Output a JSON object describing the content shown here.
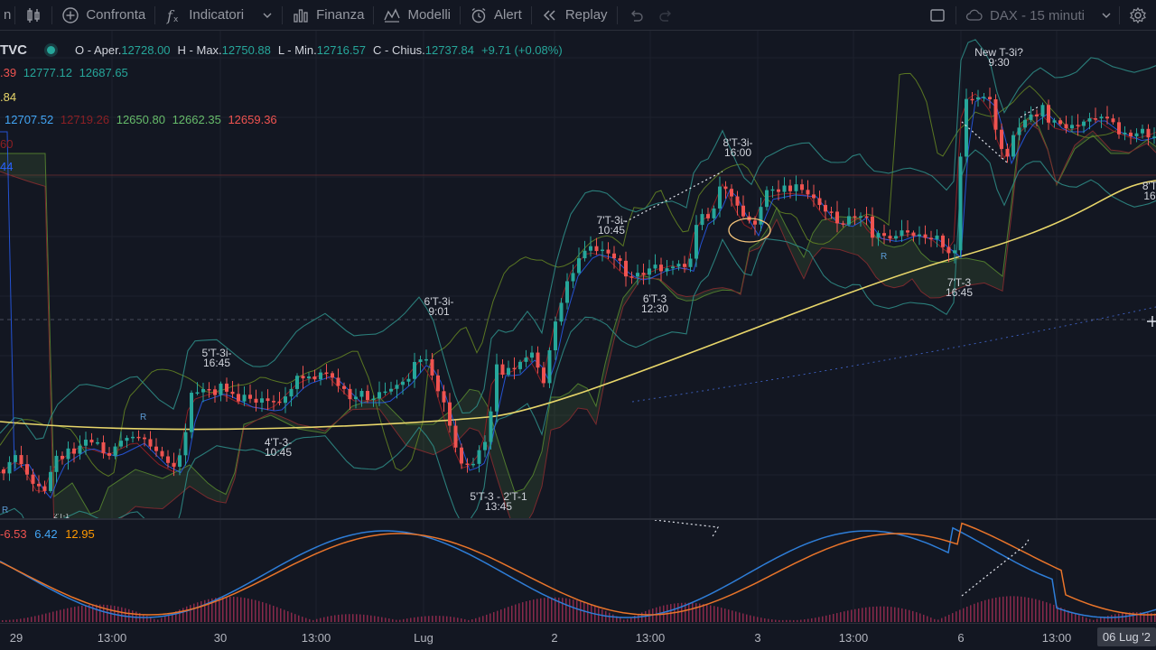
{
  "toolbar": {
    "compare_label": "Confronta",
    "indicators_label": "Indicatori",
    "finance_label": "Finanza",
    "templates_label": "Modelli",
    "alert_label": "Alert",
    "replay_label": "Replay",
    "symbol_interval": "DAX - 15 minuti",
    "left_partial": "n"
  },
  "legend": {
    "symbol": "TVC",
    "open_label": "O - Aper.",
    "open": "12728.00",
    "high_label": "H - Max.",
    "high": "12750.88",
    "low_label": "L - Min.",
    "low": "12716.57",
    "close_label": "C - Chius.",
    "close": "12737.84",
    "change": "+9.71 (+0.08%)",
    "bb_prefix": ".39",
    "bb_upper": "12777.12",
    "bb_lower": "12687.65",
    "ma_value": ".84",
    "ichimoku_v1": "12707.52",
    "ichimoku_v2": "12719.26",
    "ichimoku_v3": "12650.80",
    "ichimoku_v4": "12662.35",
    "ichimoku_v5": "12659.36",
    "row4_partial": "60",
    "row5_partial": "44",
    "macd_hist": "-6.53",
    "macd_line": "6.42",
    "macd_signal": "12.95"
  },
  "annotations": {
    "a1": "5'T-3i-\n16:45",
    "a2": "4'T-3-\n10:45",
    "a3": "6'T-3i-\n9:01",
    "a4": "5'T-3 - 2'T-1\n13:45",
    "a5": "7'T-3i-\n10:45",
    "a6": "6'T-3\n12:30",
    "a7": "8'T-3i-\n16:00",
    "a8": "7'T-3\n16:45",
    "a9": "New T-3i?\n9:30",
    "a10": "8'T\n16",
    "a11": "2'T-1"
  },
  "time_axis": {
    "ticks": [
      "29",
      "13:00",
      "30",
      "13:00",
      "Lug",
      "2",
      "13:00",
      "3",
      "13:00",
      "6",
      "13:00"
    ],
    "last_label": "06 Lug '2"
  },
  "colors": {
    "background": "#131722",
    "up": "#26a69a",
    "down": "#ef5350",
    "ma": "#e8d66a",
    "bb": "#2f8f8a",
    "macd": "#2962ff",
    "signal": "#ff6d00"
  }
}
